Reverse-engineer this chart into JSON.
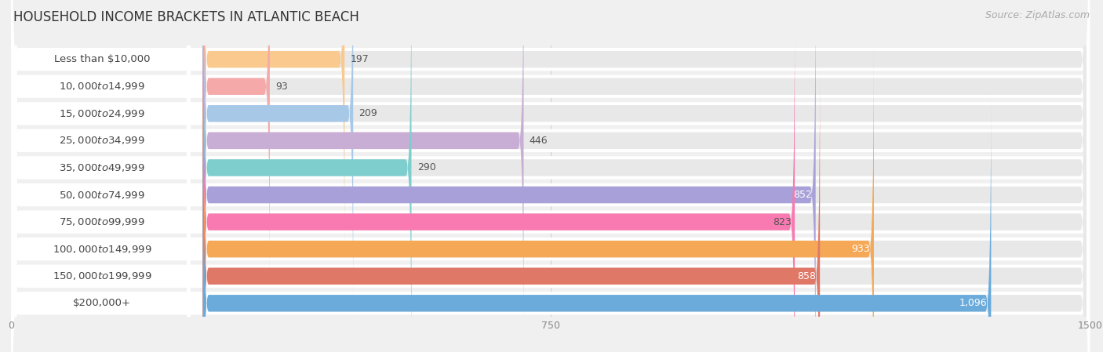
{
  "title": "HOUSEHOLD INCOME BRACKETS IN ATLANTIC BEACH",
  "source": "Source: ZipAtlas.com",
  "categories": [
    "Less than $10,000",
    "$10,000 to $14,999",
    "$15,000 to $24,999",
    "$25,000 to $34,999",
    "$35,000 to $49,999",
    "$50,000 to $74,999",
    "$75,000 to $99,999",
    "$100,000 to $149,999",
    "$150,000 to $199,999",
    "$200,000+"
  ],
  "values": [
    197,
    93,
    209,
    446,
    290,
    852,
    823,
    933,
    858,
    1096
  ],
  "bar_colors": [
    "#f9c98e",
    "#f5a9a9",
    "#a8c8e8",
    "#c8aed4",
    "#7ecece",
    "#a8a0d8",
    "#f87ab0",
    "#f5a855",
    "#e07868",
    "#6aabdb"
  ],
  "label_colors_outside": [
    "#555555",
    "#555555",
    "#555555",
    "#555555",
    "#555555",
    "#555555",
    "#555555",
    "#555555",
    "#555555",
    "#555555"
  ],
  "label_colors_inside": [
    "#555555",
    "#555555",
    "#555555",
    "#555555",
    "#555555",
    "#555555",
    "#555555",
    "#ffffff",
    "#555555",
    "#ffffff"
  ],
  "xlim": [
    0,
    1500
  ],
  "xticks": [
    0,
    750,
    1500
  ],
  "background_color": "#f0f0f0",
  "bar_row_bg_color": "#ffffff",
  "bar_track_color": "#e8e8e8",
  "title_fontsize": 12,
  "source_fontsize": 9,
  "label_fontsize": 9.5,
  "value_fontsize": 9,
  "tick_fontsize": 9
}
